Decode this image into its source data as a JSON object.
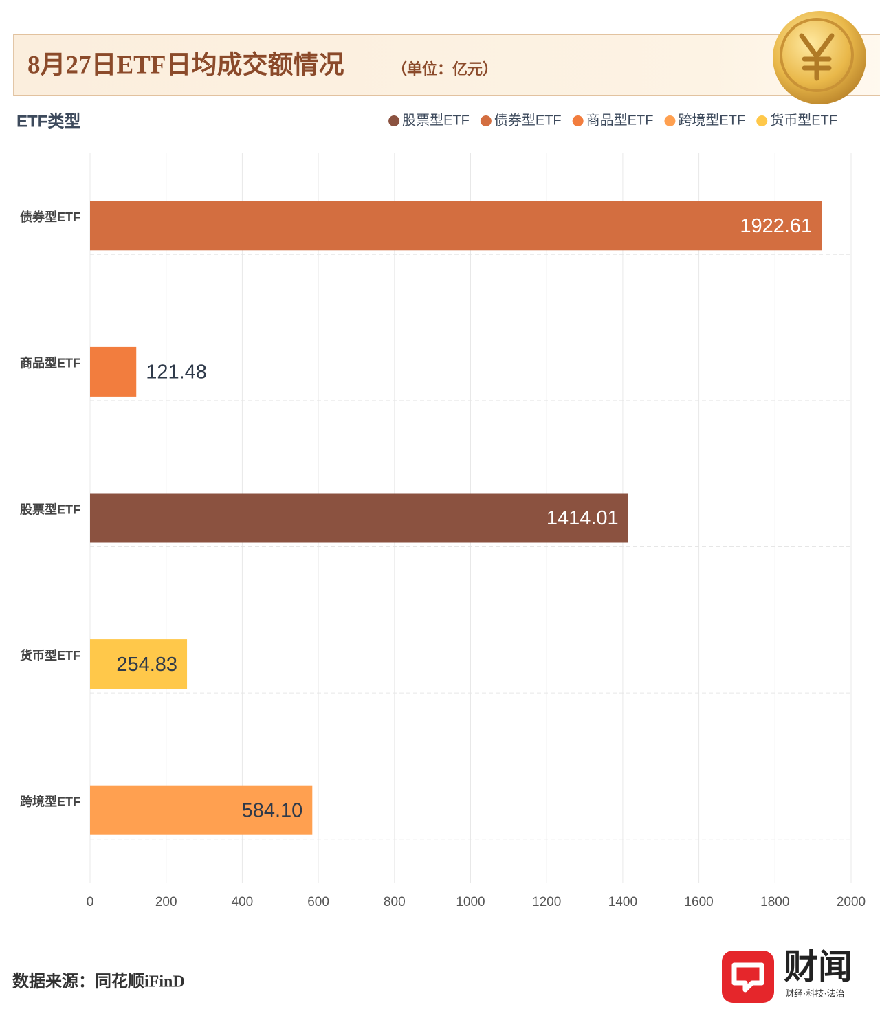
{
  "chart_data": {
    "type": "bar",
    "orientation": "horizontal",
    "title": "8月27日ETF日均成交额情况",
    "subtitle": "（单位：亿元）",
    "y_label": "ETF类型",
    "categories": [
      "债券型ETF",
      "商品型ETF",
      "股票型ETF",
      "货币型ETF",
      "跨境型ETF"
    ],
    "series": [
      {
        "name": "股票型ETF",
        "color": "#8b5240",
        "values": [
          null,
          null,
          1414.01,
          null,
          null
        ],
        "value_labels": [
          null,
          null,
          "1414.01",
          null,
          null
        ]
      },
      {
        "name": "债券型ETF",
        "color": "#d36e40",
        "values": [
          1922.61,
          null,
          null,
          null,
          null
        ],
        "value_labels": [
          "1922.61",
          null,
          null,
          null,
          null
        ]
      },
      {
        "name": "商品型ETF",
        "color": "#f27d3e",
        "values": [
          null,
          121.48,
          null,
          null,
          null
        ],
        "value_labels": [
          null,
          "121.48",
          null,
          null,
          null
        ]
      },
      {
        "name": "跨境型ETF",
        "color": "#ffa050",
        "values": [
          null,
          null,
          null,
          null,
          584.1
        ],
        "value_labels": [
          null,
          null,
          null,
          null,
          "584.10"
        ]
      },
      {
        "name": "货币型ETF",
        "color": "#ffc84a",
        "values": [
          null,
          null,
          null,
          254.83,
          null
        ],
        "value_labels": [
          null,
          null,
          null,
          "254.83",
          null
        ]
      }
    ],
    "xlim": [
      0,
      2000
    ],
    "xticks": [
      0,
      200,
      400,
      600,
      800,
      1000,
      1200,
      1400,
      1600,
      1800,
      2000
    ],
    "grid": true,
    "legend": "top-right"
  },
  "source": "数据来源：同花顺iFinD",
  "logo": {
    "name": "财闻",
    "slogan": "财经·科技·法治"
  }
}
